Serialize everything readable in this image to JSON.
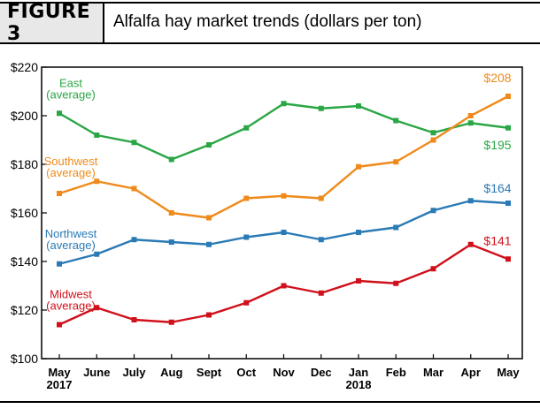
{
  "figure": {
    "label": "FIGURE 3",
    "title": "Alfalfa hay market trends (dollars per ton)"
  },
  "chart_data": {
    "type": "line",
    "categories": [
      "May",
      "June",
      "July",
      "Aug",
      "Sept",
      "Oct",
      "Nov",
      "Dec",
      "Jan",
      "Feb",
      "Mar",
      "Apr",
      "May"
    ],
    "year_labels": [
      {
        "index": 0,
        "text": "2017"
      },
      {
        "index": 8,
        "text": "2018"
      }
    ],
    "ylim": [
      100,
      220
    ],
    "yticks": [
      {
        "value": 100,
        "label": "$100"
      },
      {
        "value": 120,
        "label": "$120"
      },
      {
        "value": 140,
        "label": "$140"
      },
      {
        "value": 160,
        "label": "$160"
      },
      {
        "value": 180,
        "label": "$180"
      },
      {
        "value": 200,
        "label": "$200"
      },
      {
        "value": 220,
        "label": "$220"
      }
    ],
    "grid": false,
    "series": [
      {
        "name": "East\n(average)",
        "color": "#2aa645",
        "values": [
          201,
          192,
          189,
          182,
          188,
          195,
          205,
          203,
          204,
          198,
          193,
          197,
          195
        ],
        "end_label": "$195"
      },
      {
        "name": "Southwest\n(average)",
        "color": "#ef8a1a",
        "values": [
          168,
          173,
          170,
          160,
          158,
          166,
          167,
          166,
          179,
          181,
          190,
          200,
          208
        ],
        "end_label": "$208"
      },
      {
        "name": "Northwest\n(average)",
        "color": "#2a7ab5",
        "values": [
          139,
          143,
          149,
          148,
          147,
          150,
          152,
          149,
          152,
          154,
          161,
          165,
          164
        ],
        "end_label": "$164"
      },
      {
        "name": "Midwest\n(average)",
        "color": "#d0101b",
        "values": [
          114,
          121,
          116,
          115,
          118,
          123,
          130,
          127,
          132,
          131,
          137,
          147,
          141
        ],
        "end_label": "$141"
      }
    ]
  }
}
